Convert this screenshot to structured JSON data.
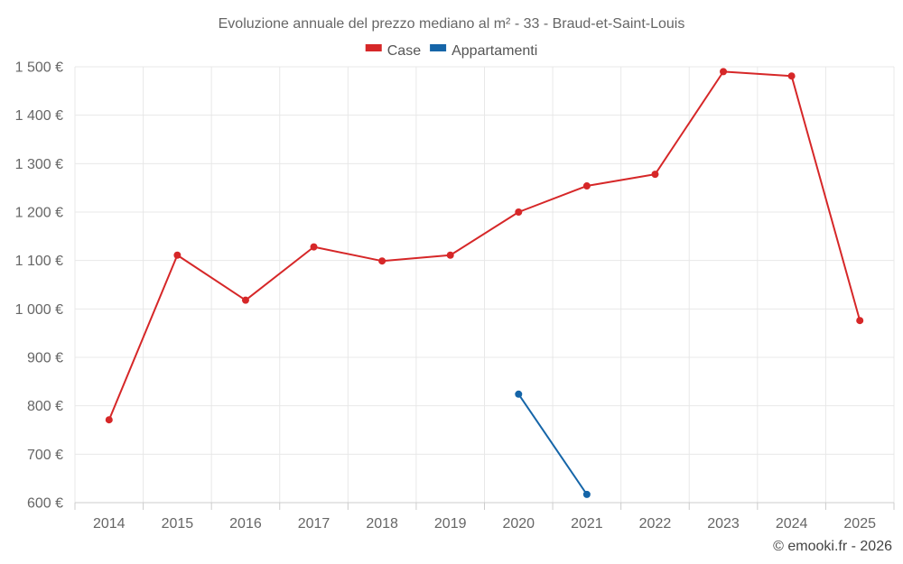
{
  "chart_data": {
    "type": "line",
    "title": "Evoluzione annuale del prezzo mediano al m² - 33 - Braud-et-Saint-Louis",
    "xlabel": "",
    "ylabel": "",
    "categories": [
      "2014",
      "2015",
      "2016",
      "2017",
      "2018",
      "2019",
      "2020",
      "2021",
      "2022",
      "2023",
      "2024",
      "2025"
    ],
    "ylim": [
      600,
      1500
    ],
    "yticks": [
      600,
      700,
      800,
      900,
      1000,
      1100,
      1200,
      1300,
      1400,
      1500
    ],
    "ytick_labels": [
      "600 €",
      "700 €",
      "800 €",
      "900 €",
      "1 000 €",
      "1 100 €",
      "1 200 €",
      "1 300 €",
      "1 400 €",
      "1 500 €"
    ],
    "grid": true,
    "legend_position": "top-center",
    "series": [
      {
        "name": "Case",
        "color": "#d62728",
        "values": [
          771,
          1111,
          1018,
          1128,
          1099,
          1111,
          1200,
          1254,
          1278,
          1490,
          1481,
          976
        ]
      },
      {
        "name": "Appartamenti",
        "color": "#1565a8",
        "values": [
          null,
          null,
          null,
          null,
          null,
          null,
          824,
          617,
          null,
          null,
          null,
          null
        ]
      }
    ]
  },
  "credit": "© emooki.fr - 2026"
}
